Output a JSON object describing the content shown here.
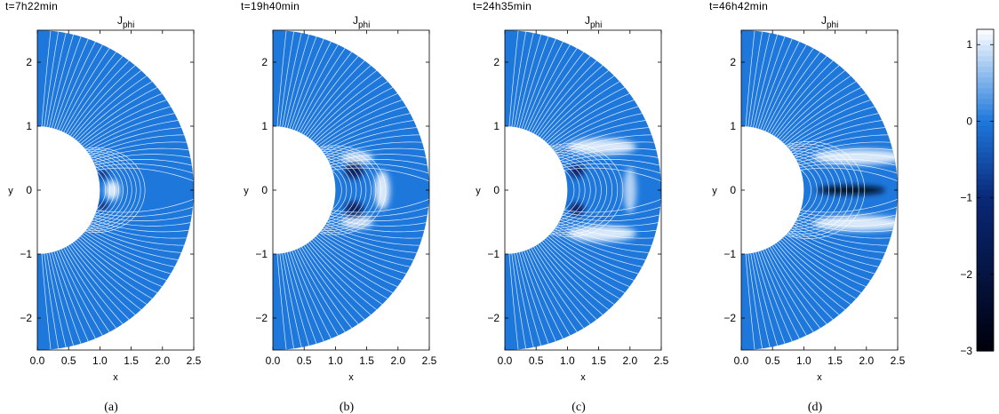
{
  "chart_data": {
    "type": "heatmap",
    "quantity": "J_phi",
    "panels": [
      {
        "caption": "(a)",
        "time_label": "t=7h22min",
        "title": "J",
        "title_sub": "phi",
        "xlabel": "x",
        "ylabel": "y",
        "xlim": [
          0,
          2.5
        ],
        "ylim": [
          -2.5,
          2.5
        ],
        "xticks": [
          "0.0",
          "0.5",
          "1.0",
          "1.5",
          "2.0",
          "2.5"
        ],
        "yticks": [
          "−2",
          "−1",
          "0",
          "1",
          "2"
        ],
        "features": [
          {
            "x": 1.2,
            "y": 0,
            "rx": 0.12,
            "ry": 0.15,
            "value": 1.0
          },
          {
            "x": 1.05,
            "y": 0.25,
            "rx": 0.08,
            "ry": 0.06,
            "value": -1.2
          },
          {
            "x": 1.05,
            "y": -0.25,
            "rx": 0.08,
            "ry": 0.06,
            "value": -1.2
          }
        ]
      },
      {
        "caption": "(b)",
        "time_label": "t=19h40min",
        "title": "J",
        "title_sub": "phi",
        "xlabel": "x",
        "ylabel": "y",
        "xlim": [
          0,
          2.5
        ],
        "ylim": [
          -2.5,
          2.5
        ],
        "xticks": [
          "0.0",
          "0.5",
          "1.0",
          "1.5",
          "2.0",
          "2.5"
        ],
        "yticks": [
          "−2",
          "−1",
          "0",
          "1",
          "2"
        ],
        "features": [
          {
            "x": 1.75,
            "y": 0,
            "rx": 0.12,
            "ry": 0.3,
            "value": 1.0
          },
          {
            "x": 1.35,
            "y": 0.5,
            "rx": 0.25,
            "ry": 0.1,
            "value": 0.9
          },
          {
            "x": 1.35,
            "y": -0.5,
            "rx": 0.25,
            "ry": 0.1,
            "value": 0.9
          },
          {
            "x": 1.3,
            "y": 0.3,
            "rx": 0.15,
            "ry": 0.12,
            "value": -1.4
          },
          {
            "x": 1.3,
            "y": -0.3,
            "rx": 0.15,
            "ry": 0.12,
            "value": -1.4
          }
        ]
      },
      {
        "caption": "(c)",
        "time_label": "t=24h35min",
        "title": "J",
        "title_sub": "phi",
        "xlabel": "x",
        "ylabel": "y",
        "xlim": [
          0,
          2.5
        ],
        "ylim": [
          -2.5,
          2.5
        ],
        "xticks": [
          "0.0",
          "0.5",
          "1.0",
          "1.5",
          "2.0",
          "2.5"
        ],
        "yticks": [
          "−2",
          "−1",
          "0",
          "1",
          "2"
        ],
        "features": [
          {
            "x": 1.55,
            "y": 0.68,
            "rx": 0.55,
            "ry": 0.12,
            "value": 1.0
          },
          {
            "x": 1.55,
            "y": -0.68,
            "rx": 0.55,
            "ry": 0.12,
            "value": 1.0
          },
          {
            "x": 2.0,
            "y": 0,
            "rx": 0.1,
            "ry": 0.35,
            "value": 0.8
          },
          {
            "x": 1.15,
            "y": 0.3,
            "rx": 0.12,
            "ry": 0.1,
            "value": -1.3
          },
          {
            "x": 1.15,
            "y": -0.3,
            "rx": 0.12,
            "ry": 0.1,
            "value": -1.3
          }
        ]
      },
      {
        "caption": "(d)",
        "time_label": "t=46h42min",
        "title": "J",
        "title_sub": "phi",
        "xlabel": "x",
        "ylabel": "y",
        "xlim": [
          0,
          2.5
        ],
        "ylim": [
          -2.5,
          2.5
        ],
        "xticks": [
          "0.0",
          "0.5",
          "1.0",
          "1.5",
          "2.0",
          "2.5"
        ],
        "yticks": [
          "−2",
          "−1",
          "0",
          "1",
          "2"
        ],
        "features": [
          {
            "x": 1.75,
            "y": 0,
            "rx": 0.55,
            "ry": 0.07,
            "value": -2.6
          },
          {
            "x": 1.9,
            "y": 0.52,
            "rx": 0.75,
            "ry": 0.12,
            "value": 1.0
          },
          {
            "x": 1.9,
            "y": -0.52,
            "rx": 0.75,
            "ry": 0.12,
            "value": 1.0
          }
        ]
      }
    ],
    "colorbar": {
      "range": [
        -3,
        1.2
      ],
      "ticks": [
        "1",
        "0",
        "−1",
        "−2",
        "−3"
      ],
      "tick_values": [
        1,
        0,
        -1,
        -2,
        -3
      ]
    },
    "colors": {
      "background": "#1e78dc",
      "light": "#ffffff",
      "mid": "#1e78dc",
      "dark": "#0a2878",
      "darkest": "#00000a",
      "field_lines": "#ffffff"
    }
  }
}
